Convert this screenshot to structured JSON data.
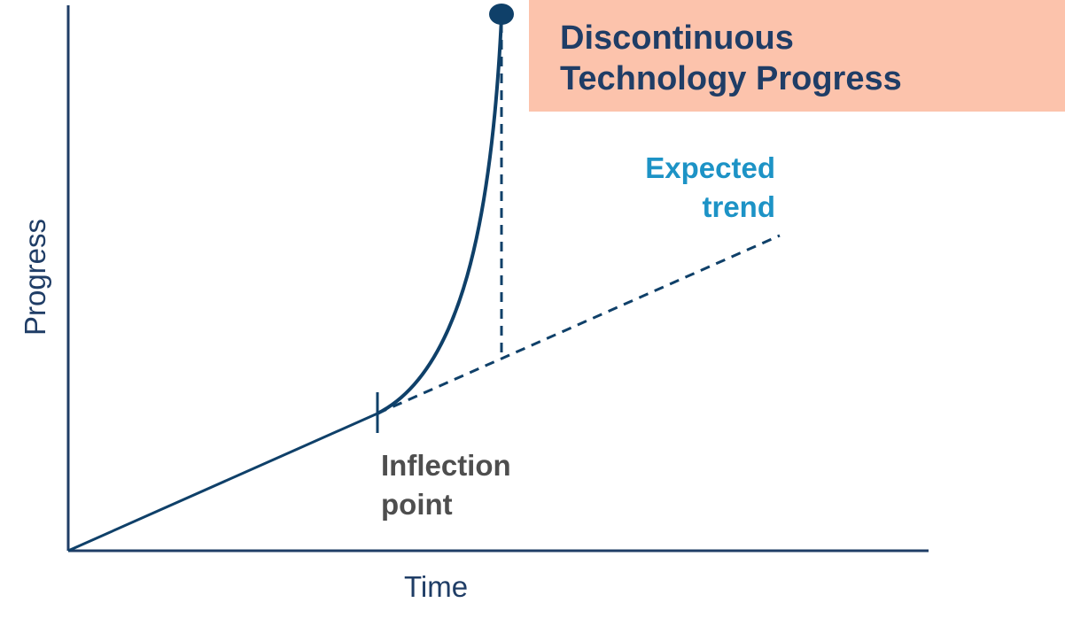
{
  "title": "Discontinuous\nTechnology Progress",
  "axes": {
    "x_label": "Time",
    "y_label": "Progress"
  },
  "labels": {
    "expected_trend": "Expected\ntrend",
    "inflection_point": "Inflection\npoint"
  },
  "colors": {
    "axis": "#1f3d66",
    "curve": "#0f4069",
    "title_box": "#fcc3ac",
    "title_text": "#1f3d66",
    "expected_text": "#1d93c6",
    "inflection_text": "#4e4e4e"
  }
}
